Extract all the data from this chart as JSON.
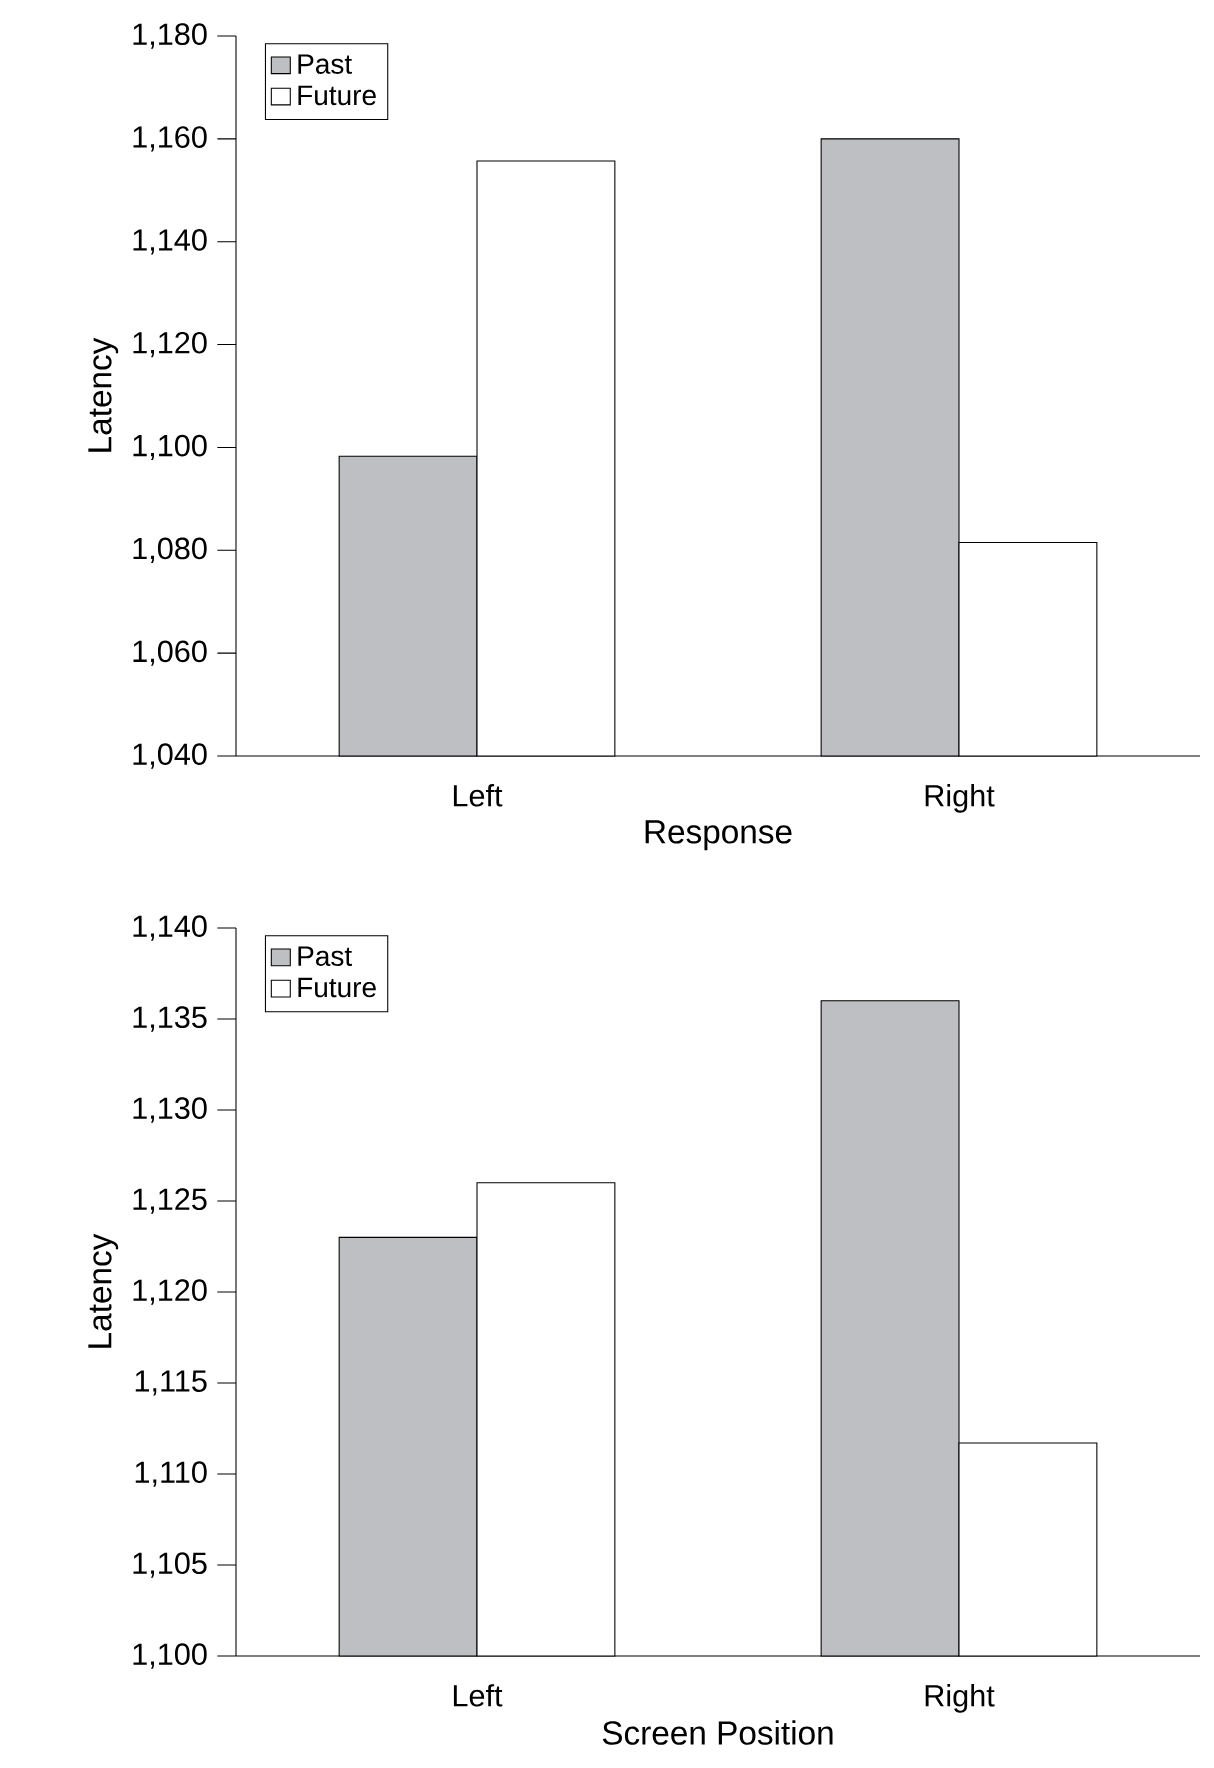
{
  "chart_data": [
    {
      "type": "bar",
      "xlabel": "Response",
      "ylabel": "Latency",
      "categories": [
        "Left",
        "Right"
      ],
      "legend": "top left",
      "ylim": [
        1040,
        1180
      ],
      "yticks": [
        {
          "value": 1040,
          "label": "1,040"
        },
        {
          "value": 1060,
          "label": "1,060"
        },
        {
          "value": 1080,
          "label": "1,080"
        },
        {
          "value": 1100,
          "label": "1,100"
        },
        {
          "value": 1120,
          "label": "1,120"
        },
        {
          "value": 1140,
          "label": "1,140"
        },
        {
          "value": 1160,
          "label": "1,160"
        },
        {
          "value": 1180,
          "label": "1,180"
        }
      ],
      "series": [
        {
          "name": "Past",
          "color": "#bebfc2",
          "values": [
            1098.3,
            1160
          ]
        },
        {
          "name": "Future",
          "color": "#ffffff",
          "values": [
            1155.7,
            1081.5
          ]
        }
      ]
    },
    {
      "type": "bar",
      "xlabel": "Screen Position",
      "ylabel": "Latency",
      "categories": [
        "Left",
        "Right"
      ],
      "legend": "top left",
      "ylim": [
        1100,
        1140
      ],
      "yticks": [
        {
          "value": 1100,
          "label": "1,100"
        },
        {
          "value": 1105,
          "label": "1,105"
        },
        {
          "value": 1110,
          "label": "1,110"
        },
        {
          "value": 1115,
          "label": "1,115"
        },
        {
          "value": 1120,
          "label": "1,120"
        },
        {
          "value": 1125,
          "label": "1,125"
        },
        {
          "value": 1130,
          "label": "1,130"
        },
        {
          "value": 1135,
          "label": "1,135"
        },
        {
          "value": 1140,
          "label": "1,140"
        }
      ],
      "series": [
        {
          "name": "Past",
          "color": "#bebfc2",
          "values": [
            1123.0,
            1136.0
          ]
        },
        {
          "name": "Future",
          "color": "#ffffff",
          "values": [
            1126.0,
            1111.7
          ]
        }
      ]
    }
  ]
}
